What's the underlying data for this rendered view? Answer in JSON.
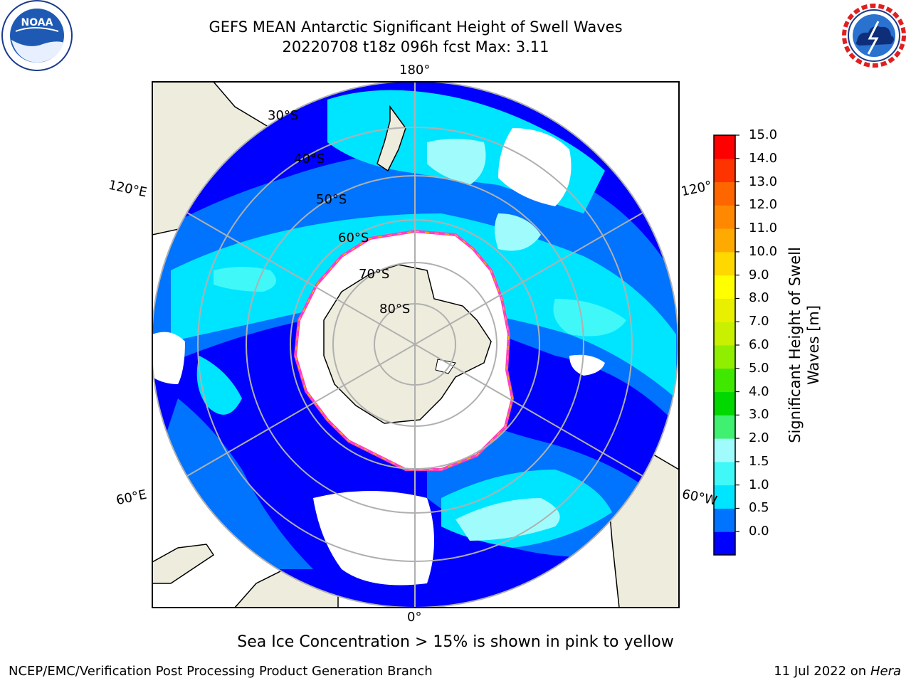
{
  "header": {
    "title_line1": "GEFS MEAN Antarctic Significant Height of Swell Waves",
    "title_line2": "20220708 t18z 096h fcst   Max: 3.11"
  },
  "logos": {
    "left": "noaa-logo",
    "right": "nws-logo"
  },
  "map": {
    "projection": "south-polar-stereographic",
    "meridian_labels": {
      "top": "180°",
      "bottom": "0°",
      "upper_left": "120°E",
      "upper_right": "120°",
      "lower_left": "60°E",
      "lower_right": "60°W"
    },
    "parallel_labels": [
      "30°S",
      "40°S",
      "50°S",
      "60°S",
      "70°S",
      "80°S"
    ],
    "colors": {
      "land": "#eeecdc",
      "ice": "#ffffff",
      "frame": "#000000",
      "grid": "#b0b0b0"
    }
  },
  "colorbar": {
    "label_line1": "Significant Height of Swell",
    "label_line2": "Waves [m]",
    "ticks": [
      "15.0",
      "14.0",
      "13.0",
      "12.0",
      "11.0",
      "10.0",
      "9.0",
      "8.0",
      "7.0",
      "6.0",
      "5.0",
      "4.0",
      "3.0",
      "2.0",
      "1.5",
      "1.0",
      "0.5",
      "0.0"
    ],
    "colors": [
      "#0000ff",
      "#0073ff",
      "#00e5ff",
      "#40f8f8",
      "#a0fcfc",
      "#40f070",
      "#00d800",
      "#40e800",
      "#90ee00",
      "#c8f000",
      "#e8f000",
      "#ffff00",
      "#ffd800",
      "#ffaa00",
      "#ff8800",
      "#ff6600",
      "#ff3300",
      "#ff0000"
    ]
  },
  "footer": {
    "note": "Sea Ice Concentration > 15% is shown in pink to yellow",
    "left": "NCEP/EMC/Verification Post Processing Product Generation Branch",
    "right_date": "11 Jul 2022 on ",
    "right_machine": "Hera"
  }
}
